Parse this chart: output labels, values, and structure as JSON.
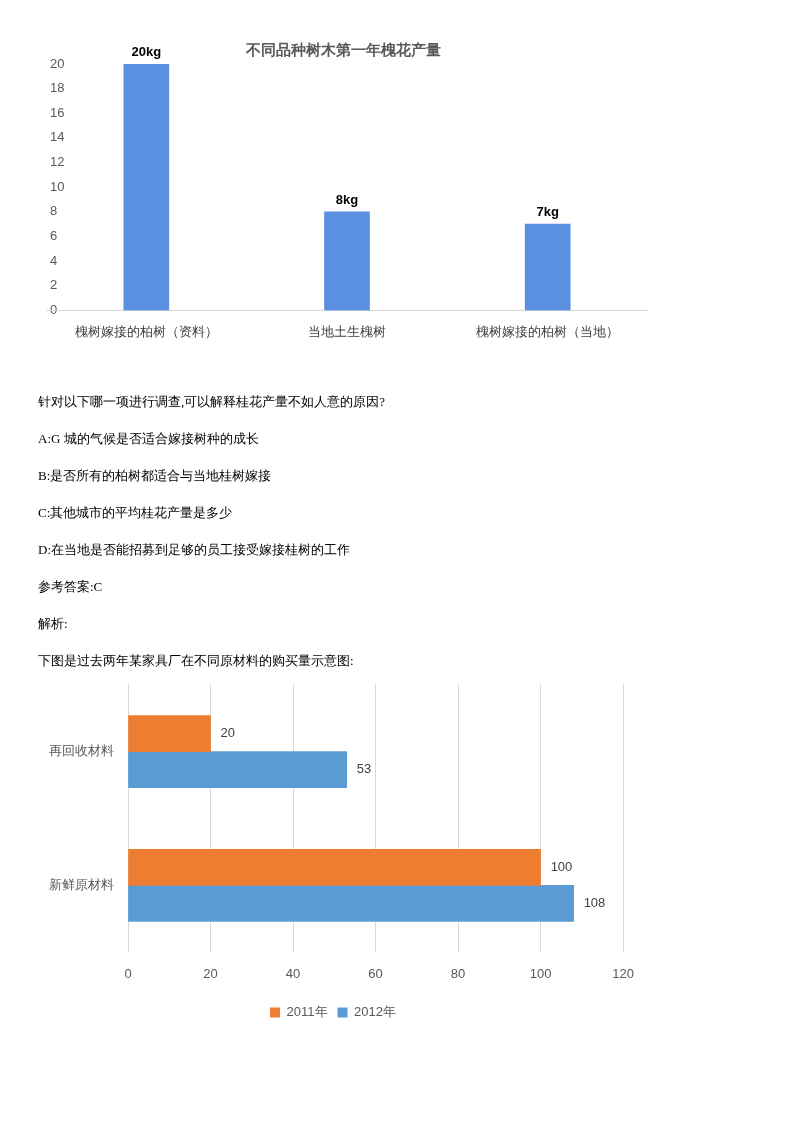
{
  "chart_data": [
    {
      "type": "bar",
      "title": "不同品种树木第一年槐花产量",
      "categories": [
        "槐树嫁接的柏树（资料）",
        "当地土生槐树",
        "槐树嫁接的柏树（当地）"
      ],
      "values": [
        20,
        8,
        7
      ],
      "value_labels": [
        "20kg",
        "8kg",
        "7kg"
      ],
      "color": "#5b8fe0",
      "ylim": [
        0,
        20
      ],
      "yticks": [
        0,
        2,
        4,
        6,
        8,
        10,
        12,
        14,
        16,
        18,
        20
      ],
      "grid": false,
      "annotations": [
        "针对以下哪一项进行调查,可以解释桂花产量不如人意的原因?",
        "A:G 城的气候是否适合嫁接树种的成长",
        "B:是否所有的柏树都适合与当地桂树嫁接",
        "C:其他城市的平均桂花产量是多少",
        "D:在当地是否能招募到足够的员工接受嫁接桂树的工作",
        "参考答案:C",
        "解析:"
      ]
    },
    {
      "type": "bar",
      "orientation": "horizontal",
      "title": "下图是过去两年某家具厂在不同原材料的购买量示意图:",
      "categories": [
        "再回收材料",
        "新鲜原材料"
      ],
      "series": [
        {
          "name": "2011年",
          "color": "#ed7d31",
          "values": [
            20,
            100
          ]
        },
        {
          "name": "2012年",
          "color": "#5b9bd5",
          "values": [
            53,
            108
          ]
        }
      ],
      "xlim": [
        0,
        120
      ],
      "xticks": [
        0,
        20,
        40,
        60,
        80,
        100,
        120
      ],
      "grid": "x",
      "legend": "bottom",
      "data_labels": true
    }
  ]
}
